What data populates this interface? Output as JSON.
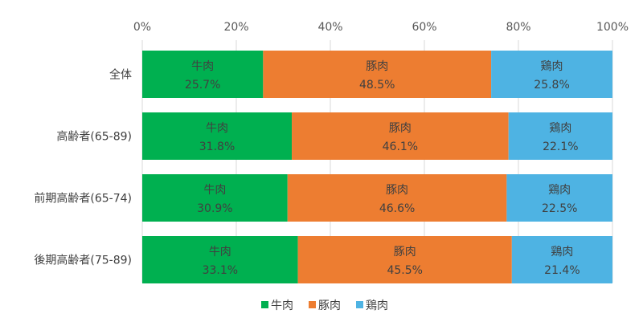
{
  "chart_data": {
    "type": "bar",
    "orientation": "horizontal",
    "stacked": "100%",
    "categories": [
      "全体",
      "高齢者(65-89)",
      "前期高齢者(65-74)",
      "後期高齢者(75-89)"
    ],
    "series": [
      {
        "name": "牛肉",
        "color": "#00b050",
        "values": [
          25.7,
          31.8,
          30.9,
          33.1
        ],
        "labels": [
          "25.7%",
          "31.8%",
          "30.9%",
          "33.1%"
        ]
      },
      {
        "name": "豚肉",
        "color": "#ed7d31",
        "values": [
          48.5,
          46.1,
          46.6,
          45.5
        ],
        "labels": [
          "48.5%",
          "46.1%",
          "46.6%",
          "45.5%"
        ]
      },
      {
        "name": "鶏肉",
        "color": "#4eb3e3",
        "values": [
          25.8,
          22.1,
          22.5,
          21.4
        ],
        "labels": [
          "25.8%",
          "22.1%",
          "22.5%",
          "21.4%"
        ]
      }
    ],
    "xlim": [
      0,
      100
    ],
    "x_ticks": [
      "0%",
      "20%",
      "40%",
      "60%",
      "80%",
      "100%"
    ],
    "x_tick_values": [
      0,
      20,
      40,
      60,
      80,
      100
    ],
    "legend_position": "bottom",
    "grid": true
  }
}
